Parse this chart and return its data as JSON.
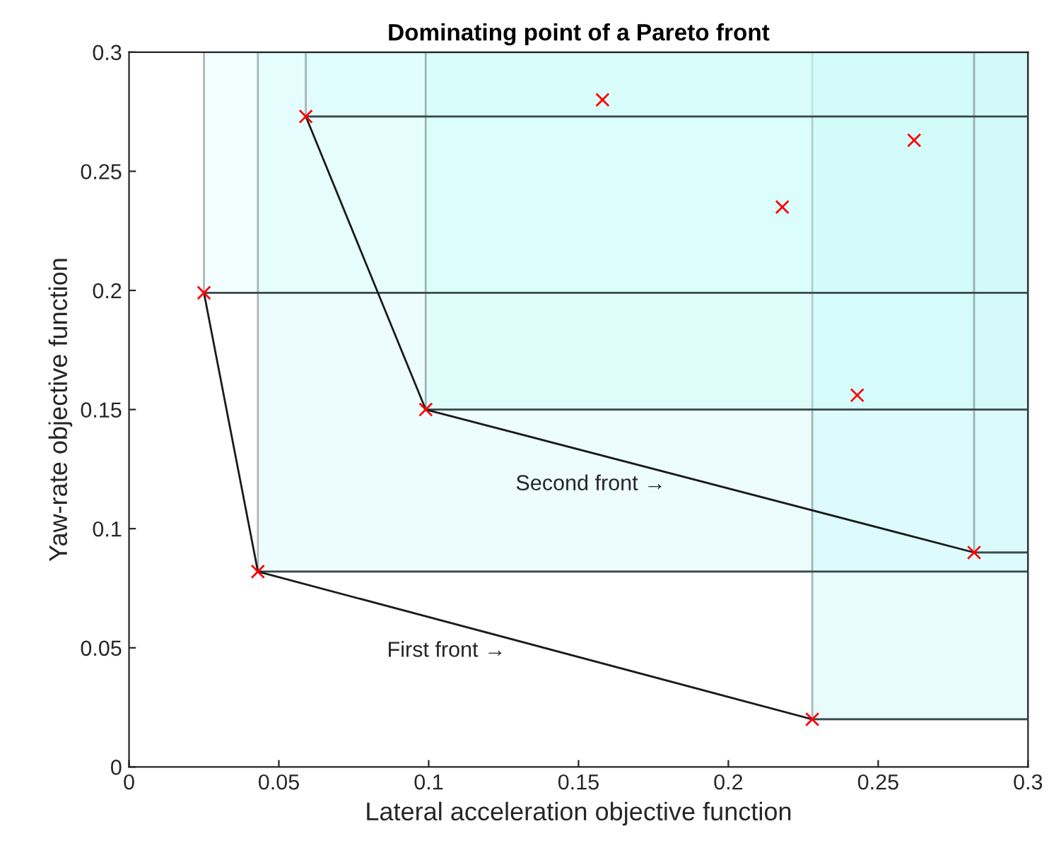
{
  "chart_data": {
    "type": "line",
    "title": "Dominating point of a Pareto front",
    "xlabel": "Lateral acceleration objective function",
    "ylabel": "Yaw-rate objective function",
    "xlim": [
      0,
      0.3
    ],
    "ylim": [
      0,
      0.3
    ],
    "xticks": [
      0,
      0.05,
      0.1,
      0.15,
      0.2,
      0.25,
      0.3
    ],
    "yticks": [
      0,
      0.05,
      0.1,
      0.15,
      0.2,
      0.25,
      0.3
    ],
    "grid": false,
    "line_style": "solid",
    "series": [
      {
        "color": "#3a4a4a",
        "x": [
          0.025,
          0.3
        ],
        "values": [
          0.199,
          0.199
        ],
        "lower": [
          0.199,
          0.199
        ],
        "upper": [
          0.3,
          0.3
        ]
      },
      {
        "color": "#3a4a4a",
        "x": [
          0.043,
          0.3
        ],
        "values": [
          0.082,
          0.082
        ],
        "lower": [
          0.082,
          0.082
        ],
        "upper": [
          0.3,
          0.3
        ]
      },
      {
        "color": "#3a4a4a",
        "x": [
          0.228,
          0.3
        ],
        "values": [
          0.02,
          0.02
        ],
        "lower": [
          0.02,
          0.02
        ],
        "upper": [
          0.3,
          0.3
        ]
      },
      {
        "color": "#3a4a4a",
        "x": [
          0.059,
          0.3
        ],
        "values": [
          0.273,
          0.273
        ],
        "lower": [
          0.273,
          0.273
        ],
        "upper": [
          0.3,
          0.3
        ]
      },
      {
        "color": "#3a4a4a",
        "x": [
          0.099,
          0.3
        ],
        "values": [
          0.15,
          0.15
        ],
        "lower": [
          0.15,
          0.15
        ],
        "upper": [
          0.3,
          0.3
        ]
      },
      {
        "color": "#3a4a4a",
        "x": [
          0.282,
          0.3
        ],
        "values": [
          0.09,
          0.09
        ],
        "lower": [
          0.09,
          0.09
        ],
        "upper": [
          0.3,
          0.3
        ]
      },
      {
        "color": "#1a1a1a",
        "x": [
          0.025,
          0.043,
          0.228
        ],
        "values": [
          0.199,
          0.082,
          0.02
        ]
      },
      {
        "color": "#1a1a1a",
        "x": [
          0.059,
          0.099,
          0.282
        ],
        "values": [
          0.273,
          0.15,
          0.09
        ]
      },
      {
        "type": "scatter",
        "color": "#ff0000",
        "marker": "cross",
        "x": [
          0.025,
          0.043,
          0.228,
          0.059,
          0.099,
          0.282,
          0.158,
          0.262,
          0.218,
          0.243
        ],
        "values": [
          0.199,
          0.082,
          0.02,
          0.273,
          0.15,
          0.09,
          0.28,
          0.263,
          0.235,
          0.156
        ]
      }
    ],
    "annotations": [
      "Second front →",
      "First front →"
    ]
  }
}
